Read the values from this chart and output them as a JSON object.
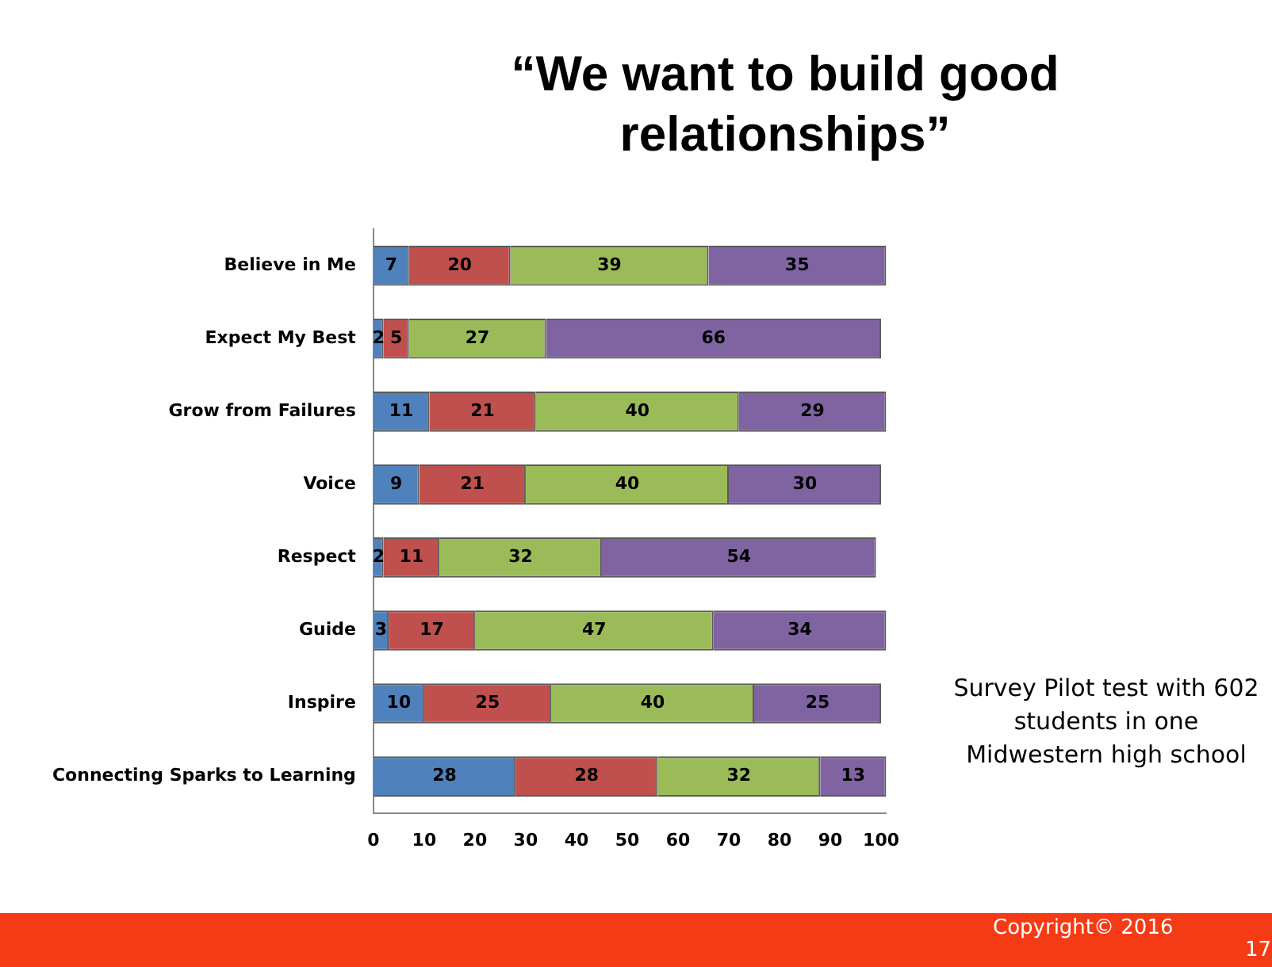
{
  "chart_data": {
    "type": "bar",
    "orientation": "horizontal",
    "stacked": true,
    "data_labels": true,
    "title": "“We want to build good relationships”",
    "categories": [
      "Believe in Me",
      "Expect My Best",
      "Grow from Failures",
      "Voice",
      "Respect",
      "Guide",
      "Inspire",
      "Connecting Sparks to Learning"
    ],
    "series": [
      {
        "color": "#4f81bd",
        "values": [
          7,
          2,
          11,
          9,
          2,
          3,
          10,
          28
        ]
      },
      {
        "color": "#c0504d",
        "values": [
          20,
          5,
          21,
          21,
          11,
          17,
          25,
          28
        ]
      },
      {
        "color": "#9bbb59",
        "values": [
          39,
          27,
          40,
          40,
          32,
          47,
          40,
          32
        ]
      },
      {
        "color": "#8064a2",
        "values": [
          35,
          66,
          29,
          30,
          54,
          34,
          25,
          13
        ]
      }
    ],
    "xlim": [
      0,
      101
    ],
    "xticks": [
      0,
      10,
      20,
      30,
      40,
      50,
      60,
      70,
      80,
      90,
      100
    ],
    "grid": false,
    "legend": false,
    "annotations": [
      "Survey Pilot test with 602 students in one Midwestern high school",
      "Copyright© 2016",
      "17"
    ]
  }
}
